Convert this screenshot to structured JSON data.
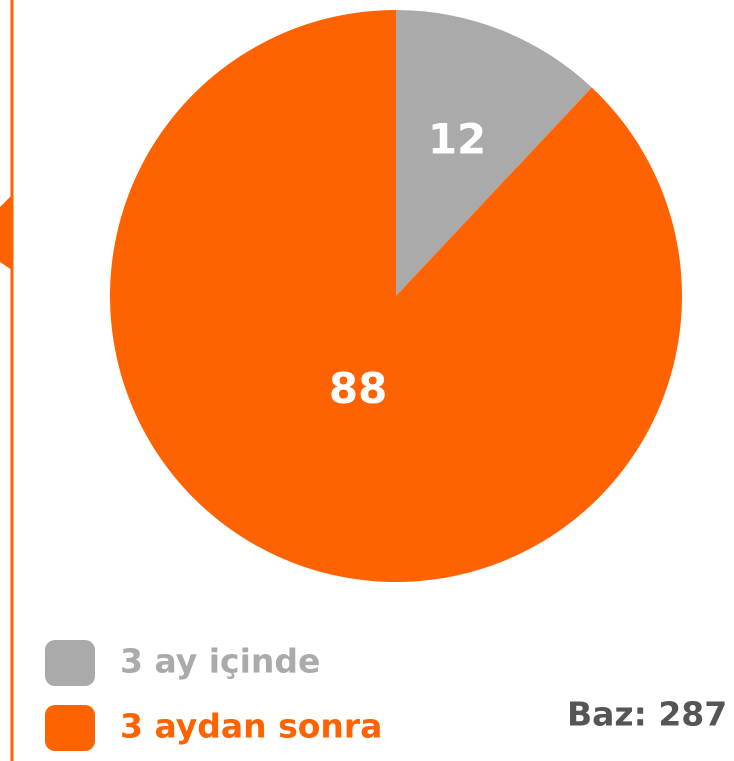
{
  "chart_data": {
    "type": "pie",
    "categories": [
      "3 ay içinde",
      "3 aydan sonra"
    ],
    "values": [
      12,
      88
    ],
    "colors": [
      "#aaaaaa",
      "#ff6200"
    ],
    "annotation": "Baz: 287"
  }
}
